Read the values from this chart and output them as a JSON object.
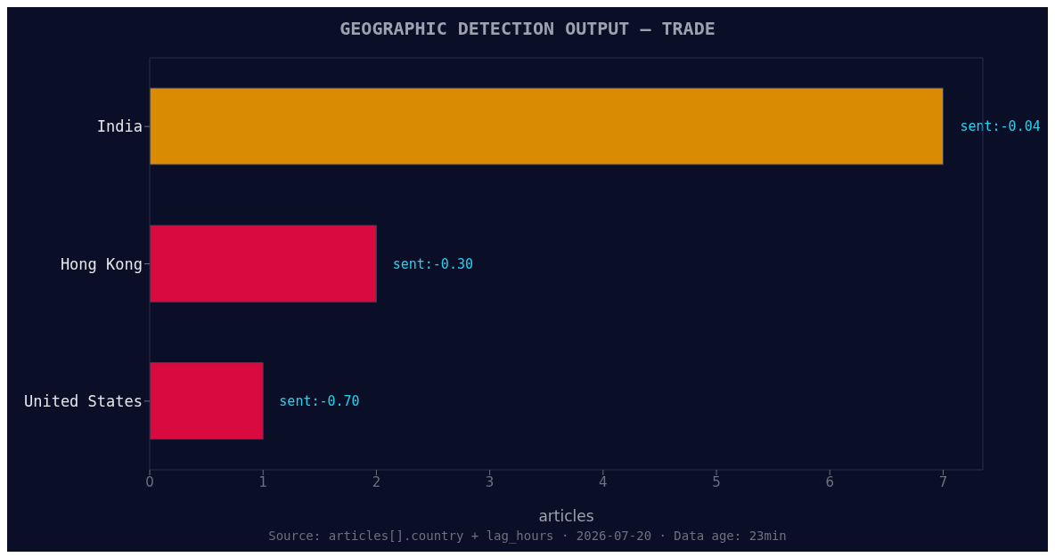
{
  "chart_data": {
    "type": "bar",
    "orientation": "horizontal",
    "title": "GEOGRAPHIC DETECTION OUTPUT — TRADE",
    "xlabel": "articles",
    "categories": [
      "India",
      "Hong Kong",
      "United States"
    ],
    "values": [
      7,
      2,
      1
    ],
    "colors": [
      "#d98b04",
      "#d90a3f",
      "#d90a3f"
    ],
    "xlim": [
      0,
      7.35
    ],
    "xticks": [
      0,
      1,
      2,
      3,
      4,
      5,
      6,
      7
    ],
    "annotations": [
      {
        "text": "sent:-0.04",
        "x": 7,
        "y": "India"
      },
      {
        "text": "sent:-0.30",
        "x": 2,
        "y": "Hong Kong"
      },
      {
        "text": "sent:-0.70",
        "x": 1,
        "y": "United States"
      },
      "Source: articles[].country + lag_hours · 2026-07-20 · Data age: 23min"
    ]
  }
}
